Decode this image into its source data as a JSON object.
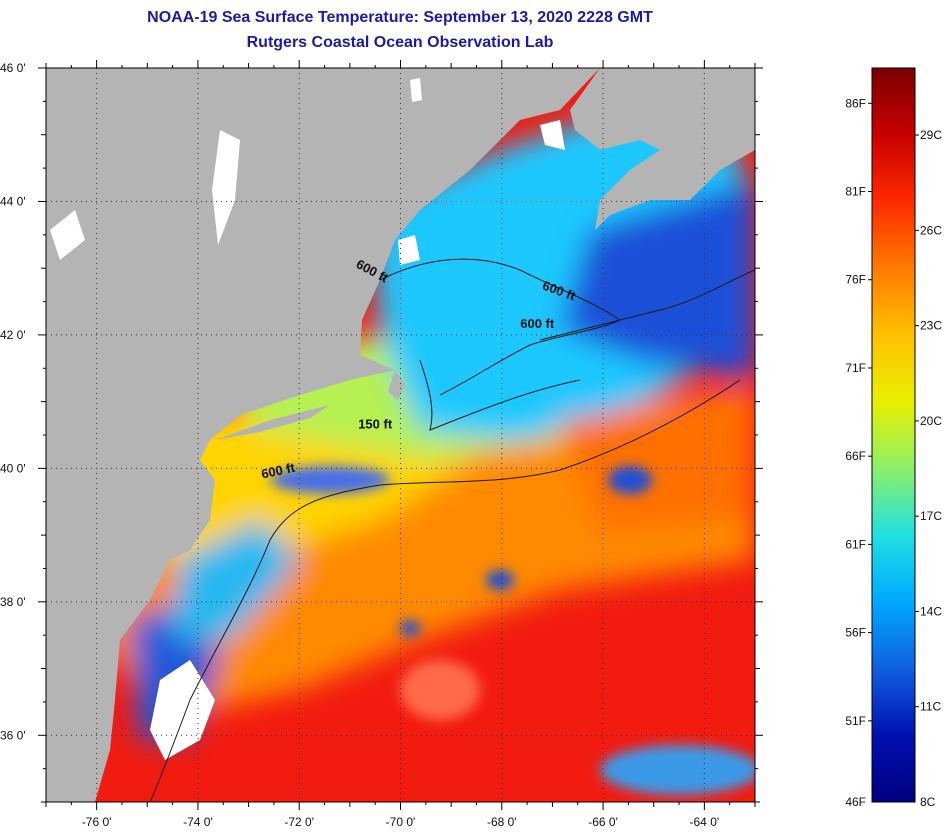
{
  "header": {
    "title": "NOAA-19 Sea Surface Temperature:  September 13, 2020 2228 GMT",
    "subtitle": "Rutgers Coastal Ocean Observation Lab"
  },
  "map": {
    "lat_labels": [
      "46 0'",
      "44 0'",
      "42 0'",
      "40 0'",
      "38 0'",
      "36 0'"
    ],
    "lon_labels": [
      "-76 0'",
      "-74 0'",
      "-72 0'",
      "-70 0'",
      "-68 0'",
      "-66 0'",
      "-64 0'"
    ],
    "lat_range": [
      35,
      46
    ],
    "lon_range": [
      -77,
      -63
    ],
    "contour_labels": [
      {
        "text": "600 ft",
        "lon": -70.6,
        "lat": 42.9,
        "rot": 28
      },
      {
        "text": "600 ft",
        "lon": -66.9,
        "lat": 42.6,
        "rot": 20
      },
      {
        "text": "600 ft",
        "lon": -67.3,
        "lat": 42.1,
        "rot": 0
      },
      {
        "text": "150 ft",
        "lon": -70.5,
        "lat": 40.6,
        "rot": 0
      },
      {
        "text": "600 ft",
        "lon": -72.4,
        "lat": 39.9,
        "rot": -12
      }
    ],
    "colors": {
      "land": "#b4b4b4",
      "cloud": "#ffffff",
      "cold": "#1e4fd8",
      "cool": "#1fc8ff",
      "mid": "#b6f052",
      "warm": "#ffb000",
      "hot": "#f21b10"
    }
  },
  "colorbar": {
    "f_labels": [
      "86F",
      "81F",
      "76F",
      "71F",
      "66F",
      "61F",
      "56F",
      "51F",
      "46F"
    ],
    "c_labels": [
      "29C",
      "26C",
      "23C",
      "20C",
      "17C",
      "14C",
      "11C",
      "8C"
    ],
    "gradient": [
      "#7a0000",
      "#c80000",
      "#ff2a00",
      "#ff7a00",
      "#ffc000",
      "#e8f000",
      "#8cf06a",
      "#20e0e0",
      "#00a8ff",
      "#1060e0",
      "#0010b0",
      "#000080"
    ]
  }
}
